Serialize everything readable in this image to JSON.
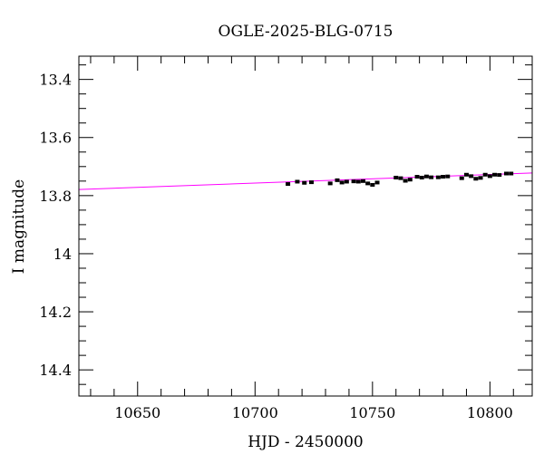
{
  "chart_data": {
    "type": "scatter",
    "title": "OGLE-2025-BLG-0715",
    "xlabel": "HJD - 2450000",
    "ylabel": "I magnitude",
    "xlim": [
      10625,
      10818
    ],
    "ylim": [
      14.49,
      13.32
    ],
    "y_inverted": true,
    "x_ticks": [
      10650,
      10700,
      10750,
      10800
    ],
    "x_tick_labels": [
      "10650",
      "10700",
      "10750",
      "10800"
    ],
    "x_minor_step": 10,
    "y_ticks": [
      13.4,
      13.6,
      13.8,
      14,
      14.2,
      14.4
    ],
    "y_tick_labels": [
      "13.4",
      "13.6",
      "13.8",
      "14",
      "14.2",
      "14.4"
    ],
    "y_minor_step": 0.05,
    "grid": false,
    "series": [
      {
        "kind": "points",
        "color": "#000000",
        "x": [
          10714,
          10718,
          10721,
          10724,
          10732,
          10735,
          10737,
          10739,
          10742,
          10744,
          10746,
          10748,
          10750,
          10752,
          10760,
          10762,
          10764,
          10766,
          10769,
          10771,
          10773,
          10775,
          10778,
          10780,
          10782,
          10788,
          10790,
          10792,
          10794,
          10796,
          10798,
          10800,
          10802,
          10804,
          10807,
          10809
        ],
        "y": [
          13.76,
          13.752,
          13.756,
          13.754,
          13.758,
          13.747,
          13.755,
          13.752,
          13.751,
          13.752,
          13.75,
          13.758,
          13.763,
          13.755,
          13.738,
          13.74,
          13.749,
          13.745,
          13.735,
          13.738,
          13.734,
          13.737,
          13.737,
          13.735,
          13.734,
          13.74,
          13.728,
          13.733,
          13.742,
          13.739,
          13.728,
          13.733,
          13.728,
          13.729,
          13.724,
          13.724
        ]
      },
      {
        "kind": "line",
        "color": "#ff00ff",
        "x": [
          10625,
          10818
        ],
        "y": [
          13.779,
          13.722
        ]
      }
    ]
  }
}
